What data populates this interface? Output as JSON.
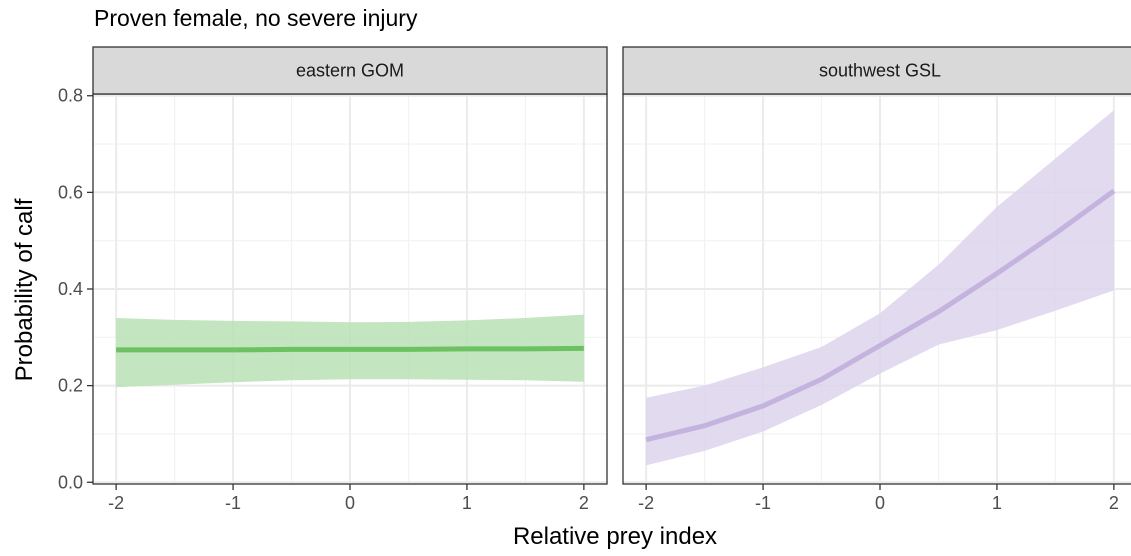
{
  "chart_data": {
    "type": "line",
    "title": "Proven female, no severe injury",
    "xlabel": "Relative prey index",
    "ylabel": "Probability of calf",
    "xlim": [
      -2,
      2
    ],
    "ylim": [
      0,
      0.8
    ],
    "x_ticks": [
      -2,
      -1,
      0,
      1,
      2
    ],
    "y_ticks": [
      0.0,
      0.2,
      0.4,
      0.6,
      0.8
    ],
    "y_tick_labels": [
      "0.0",
      "0.2",
      "0.4",
      "0.6",
      "0.8"
    ],
    "grid": true,
    "panels": [
      {
        "label": "eastern GOM",
        "color": "#6cc160",
        "band_color": "#b9e0b4",
        "x": [
          -2,
          -1.5,
          -1,
          -0.5,
          0,
          0.5,
          1,
          1.5,
          2
        ],
        "y": [
          0.274,
          0.274,
          0.274,
          0.275,
          0.275,
          0.275,
          0.276,
          0.276,
          0.277
        ],
        "lower": [
          0.197,
          0.202,
          0.207,
          0.211,
          0.213,
          0.213,
          0.212,
          0.211,
          0.208
        ],
        "upper": [
          0.34,
          0.336,
          0.334,
          0.333,
          0.331,
          0.332,
          0.335,
          0.34,
          0.347
        ]
      },
      {
        "label": "southwest GSL",
        "color": "#c4b3de",
        "band_color": "#ddd3ec",
        "x": [
          -2,
          -1.5,
          -1,
          -0.5,
          0,
          0.5,
          1,
          1.5,
          2
        ],
        "y": [
          0.088,
          0.117,
          0.158,
          0.213,
          0.283,
          0.353,
          0.432,
          0.515,
          0.603
        ],
        "lower": [
          0.035,
          0.065,
          0.105,
          0.16,
          0.225,
          0.285,
          0.315,
          0.355,
          0.397
        ],
        "upper": [
          0.175,
          0.2,
          0.238,
          0.28,
          0.35,
          0.45,
          0.57,
          0.67,
          0.77
        ]
      }
    ]
  }
}
